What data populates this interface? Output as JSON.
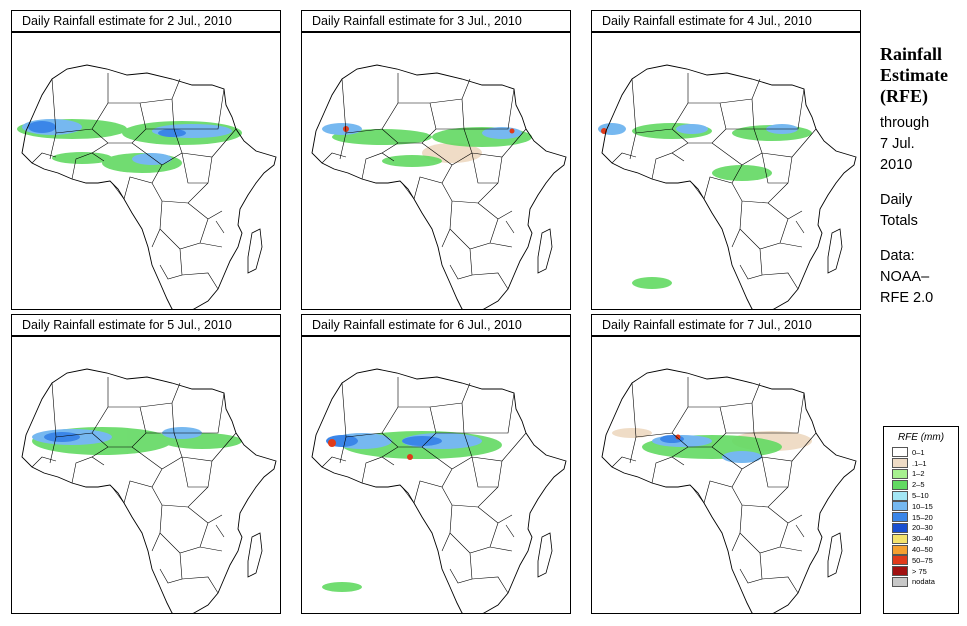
{
  "panels": [
    {
      "title": "Daily Rainfall estimate for  2 Jul., 2010",
      "pattern": "p0"
    },
    {
      "title": "Daily Rainfall estimate for  3 Jul., 2010",
      "pattern": "p1"
    },
    {
      "title": "Daily Rainfall estimate for  4 Jul., 2010",
      "pattern": "p2"
    },
    {
      "title": "Daily Rainfall estimate for  5 Jul., 2010",
      "pattern": "p3"
    },
    {
      "title": "Daily Rainfall estimate for  6 Jul., 2010",
      "pattern": "p4"
    },
    {
      "title": "Daily Rainfall estimate for  7 Jul., 2010",
      "pattern": "p5"
    }
  ],
  "sidebar": {
    "title_1": "Rainfall",
    "title_2": "Estimate",
    "title_3": "(RFE)",
    "through_1": "through",
    "through_2": "7 Jul.",
    "through_3": "2010",
    "daily_1": "Daily",
    "daily_2": "Totals",
    "data_1": "Data:",
    "data_2": "NOAA–",
    "data_3": "RFE 2.0"
  },
  "legend": {
    "title": "RFE (mm)",
    "items": [
      {
        "label": "0–1",
        "color": "#ffffff"
      },
      {
        "label": ".1–1",
        "color": "#efdcc6"
      },
      {
        "label": "1–2",
        "color": "#a6f08f"
      },
      {
        "label": "2–5",
        "color": "#62d962"
      },
      {
        "label": "5–10",
        "color": "#a3e6f5"
      },
      {
        "label": "10–15",
        "color": "#76b8f0"
      },
      {
        "label": "15–20",
        "color": "#3b86e8"
      },
      {
        "label": "20–30",
        "color": "#1a4fd0"
      },
      {
        "label": "30–40",
        "color": "#f5e36b"
      },
      {
        "label": "40–50",
        "color": "#f5a030"
      },
      {
        "label": "50–75",
        "color": "#e03a1a"
      },
      {
        "label": "> 75",
        "color": "#a01010"
      },
      {
        "label": "nodata",
        "color": "#c8c8c8"
      }
    ]
  }
}
